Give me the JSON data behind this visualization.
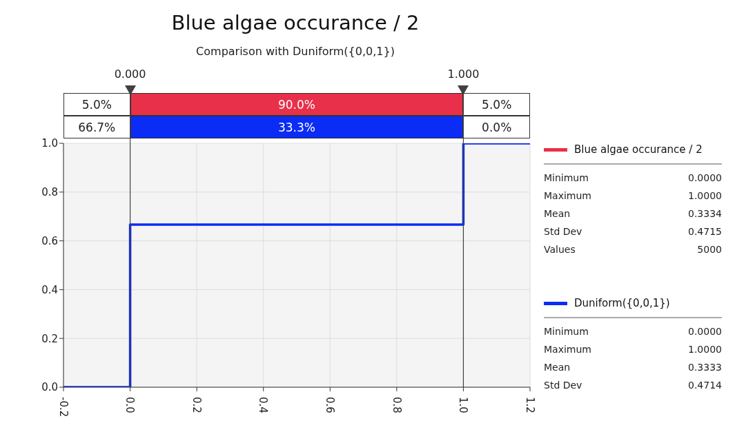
{
  "chart_data": {
    "type": "step",
    "title": "Blue algae occurance / 2",
    "subtitle": "Comparison with Duniform({0,0,1})",
    "x": [
      -0.2,
      0,
      1,
      1.2
    ],
    "series": [
      {
        "name": "Blue algae occurance / 2",
        "color": "#e8304a",
        "values": [
          null,
          null,
          null,
          null
        ]
      },
      {
        "name": "Duniform({0,0,1})",
        "color": "#0b2cf5",
        "values": [
          0,
          0.667,
          1,
          1
        ]
      }
    ],
    "xlim": [
      -0.2,
      1.2
    ],
    "xticks": [
      {
        "value": -0.2,
        "label": "-0.2"
      },
      {
        "value": 0,
        "label": "0.0"
      },
      {
        "value": 0.2,
        "label": "0.2"
      },
      {
        "value": 0.4,
        "label": "0.4"
      },
      {
        "value": 0.6,
        "label": "0.6"
      },
      {
        "value": 0.8,
        "label": "0.8"
      },
      {
        "value": 1,
        "label": "1.0"
      },
      {
        "value": 1.2,
        "label": "1.2"
      }
    ],
    "ylim": [
      0,
      1
    ],
    "yticks": [
      {
        "value": 0,
        "label": "0.0"
      },
      {
        "value": 0.2,
        "label": "0.2"
      },
      {
        "value": 0.4,
        "label": "0.4"
      },
      {
        "value": 0.6,
        "label": "0.6"
      },
      {
        "value": 0.8,
        "label": "0.8"
      },
      {
        "value": 1,
        "label": "1.0"
      }
    ],
    "ref_lines": [
      {
        "axis": "x",
        "value": 0,
        "label": "0.000",
        "color": "#404040"
      },
      {
        "axis": "x",
        "value": 1,
        "label": "1.000",
        "color": "#404040"
      }
    ],
    "annotations": [
      "5.0%",
      "90.0%",
      "5.0%",
      "66.7%",
      "33.3%",
      "0.0%",
      "Minimum 0.0000",
      "Maximum 1.0000",
      "Mean 0.3334",
      "Std Dev 0.4715",
      "Values 5000",
      "Minimum 0.0000",
      "Maximum 1.0000",
      "Mean 0.3333",
      "Std Dev 0.4714"
    ],
    "grid": true,
    "legend": "right",
    "line_style": "solid",
    "marker": "none"
  }
}
